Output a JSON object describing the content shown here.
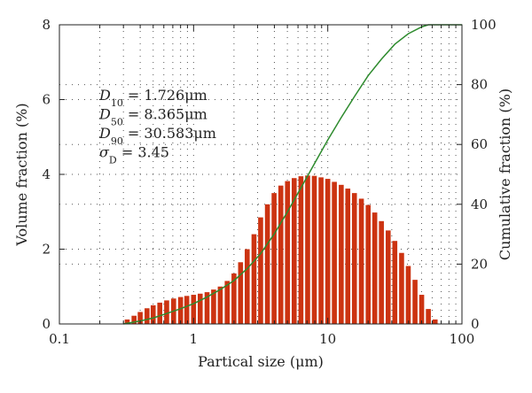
{
  "chart_data": {
    "type": "bar",
    "xlabel": "Partical size (μm)",
    "ylabel_left": "Volume fraction (%)",
    "ylabel_right": "Cumulative fraction (%)",
    "x_scale": "log",
    "xlim": [
      0.1,
      100
    ],
    "ylim_left": [
      0,
      8
    ],
    "ylim_right": [
      0,
      100
    ],
    "x_ticks": [
      {
        "value": 0.1,
        "label": "0.1"
      },
      {
        "value": 1,
        "label": "1"
      },
      {
        "value": 10,
        "label": "10"
      },
      {
        "value": 100,
        "label": "100"
      }
    ],
    "y_left_ticks": [
      {
        "value": 0,
        "label": "0"
      },
      {
        "value": 2,
        "label": "2"
      },
      {
        "value": 4,
        "label": "4"
      },
      {
        "value": 6,
        "label": "6"
      },
      {
        "value": 8,
        "label": "8"
      }
    ],
    "y_right_ticks": [
      {
        "value": 0,
        "label": "0"
      },
      {
        "value": 20,
        "label": "20"
      },
      {
        "value": 40,
        "label": "40"
      },
      {
        "value": 60,
        "label": "60"
      },
      {
        "value": 80,
        "label": "80"
      },
      {
        "value": 100,
        "label": "100"
      }
    ],
    "grid": "dotted",
    "bar_color": "#cc3311",
    "line_color": "#2e8b2e",
    "annotations": [
      {
        "symbol": "D",
        "sub": "10",
        "rest": " = 1.726μm"
      },
      {
        "symbol": "D",
        "sub": "50",
        "rest": " = 8.365μm"
      },
      {
        "symbol": "D",
        "sub": "90",
        "rest": " = 30.583μm"
      },
      {
        "symbol": "σ",
        "sub": "D",
        "rest": " = 3.45"
      }
    ],
    "bars": {
      "x": [
        0.32,
        0.36,
        0.4,
        0.45,
        0.5,
        0.56,
        0.63,
        0.71,
        0.8,
        0.89,
        1.0,
        1.12,
        1.26,
        1.41,
        1.58,
        1.78,
        2.0,
        2.24,
        2.51,
        2.82,
        3.16,
        3.55,
        3.98,
        4.47,
        5.01,
        5.62,
        6.31,
        7.08,
        7.94,
        8.91,
        10.0,
        11.2,
        12.6,
        14.1,
        15.8,
        17.8,
        20.0,
        22.4,
        25.1,
        28.2,
        31.6,
        35.5,
        39.8,
        44.7,
        50.1,
        56.2,
        63.1
      ],
      "values": [
        0.12,
        0.22,
        0.32,
        0.42,
        0.5,
        0.57,
        0.63,
        0.68,
        0.72,
        0.75,
        0.78,
        0.81,
        0.85,
        0.92,
        1.0,
        1.15,
        1.35,
        1.65,
        2.0,
        2.4,
        2.85,
        3.2,
        3.5,
        3.7,
        3.82,
        3.9,
        3.95,
        3.97,
        3.96,
        3.92,
        3.88,
        3.8,
        3.72,
        3.62,
        3.5,
        3.35,
        3.18,
        2.98,
        2.75,
        2.5,
        2.22,
        1.9,
        1.55,
        1.18,
        0.78,
        0.4,
        0.12
      ]
    },
    "cumulative": {
      "name": "",
      "x": [
        0.3,
        0.4,
        0.5,
        0.63,
        0.79,
        1.0,
        1.26,
        1.58,
        2.0,
        2.51,
        3.16,
        3.98,
        5.01,
        6.31,
        7.94,
        10.0,
        12.6,
        15.8,
        20.0,
        25.1,
        31.6,
        39.8,
        50.1,
        56.2,
        63.1,
        100
      ],
      "values": [
        0,
        1.0,
        2.0,
        3.5,
        5.0,
        6.8,
        9.0,
        11.5,
        14.5,
        18.5,
        23.5,
        30.0,
        37.5,
        45.5,
        53.5,
        61.5,
        69.0,
        76.0,
        83.0,
        88.5,
        93.5,
        97.0,
        99.3,
        100,
        100,
        100
      ]
    }
  }
}
